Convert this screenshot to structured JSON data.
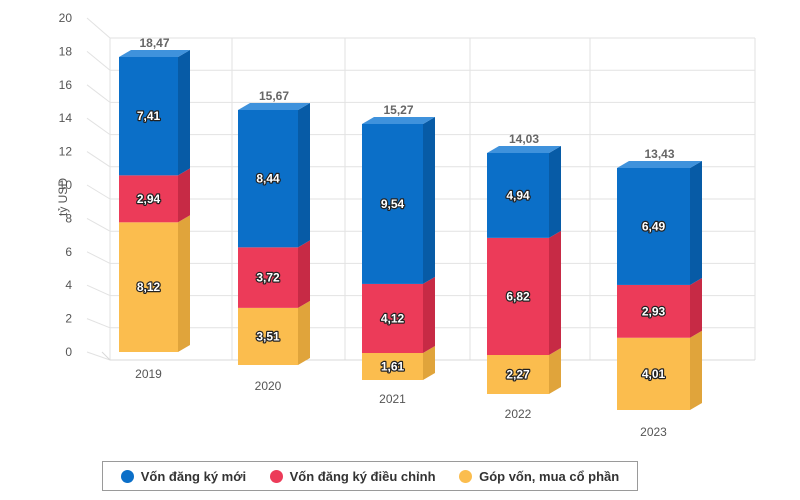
{
  "chart_data": {
    "type": "bar",
    "stacked": true,
    "three_d": true,
    "ylabel": "tỷ USD",
    "ylim": [
      0,
      20
    ],
    "yticks": [
      0,
      2,
      4,
      6,
      8,
      10,
      12,
      14,
      16,
      18,
      20
    ],
    "grid": true,
    "legend_position": "bottom",
    "categories": [
      "2019",
      "2020",
      "2021",
      "2022",
      "2023"
    ],
    "totals": [
      "18,47",
      "15,67",
      "15,27",
      "14,03",
      "13,43"
    ],
    "series": [
      {
        "name": "Góp vốn, mua cổ phần",
        "color": "#FBBD4E",
        "side": "#E0A43B",
        "top": "#FDD27E",
        "values": [
          8.12,
          3.51,
          1.61,
          2.27,
          4.01
        ],
        "labels": [
          "8,12",
          "3,51",
          "1,61",
          "2,27",
          "4,01"
        ]
      },
      {
        "name": "Vốn đăng ký điều chỉnh",
        "color": "#EC3B59",
        "side": "#C72A45",
        "top": "#F26C83",
        "values": [
          2.94,
          3.72,
          4.12,
          6.82,
          2.93
        ],
        "labels": [
          "2,94",
          "3,72",
          "4,12",
          "6,82",
          "2,93"
        ]
      },
      {
        "name": "Vốn đăng ký mới",
        "color": "#0B6FC8",
        "side": "#075BA6",
        "top": "#3F92DC",
        "values": [
          7.41,
          8.44,
          9.54,
          4.94,
          6.49
        ],
        "labels": [
          "7,41",
          "8,44",
          "9,54",
          "4,94",
          "6,49"
        ]
      }
    ]
  },
  "legend": {
    "items": [
      {
        "label": "Vốn đăng ký mới",
        "color": "#0B6FC8"
      },
      {
        "label": "Vốn đăng ký điều chỉnh",
        "color": "#EC3B59"
      },
      {
        "label": "Góp vốn, mua cổ phần",
        "color": "#FBBD4E"
      }
    ]
  }
}
